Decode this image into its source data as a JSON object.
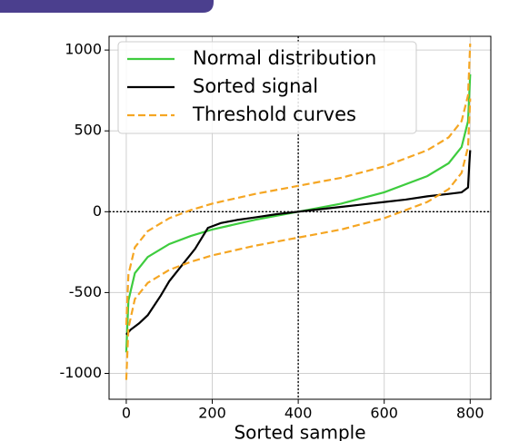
{
  "chart_data": {
    "type": "line",
    "xlabel": "Sorted sample",
    "xlim": [
      -40,
      848
    ],
    "ylim": [
      -1160,
      1085
    ],
    "xticks": [
      0,
      200,
      400,
      600,
      800
    ],
    "yticks": [
      -1000,
      -500,
      0,
      500,
      1000
    ],
    "grid": true,
    "legend": "upper left",
    "hline": 0,
    "vline": 400,
    "series": [
      {
        "name": "Normal distribution",
        "color": "#3ecc3e",
        "linestyle": "solid",
        "x": [
          0,
          5,
          20,
          50,
          100,
          150,
          200,
          300,
          400,
          500,
          600,
          700,
          750,
          780,
          795,
          800
        ],
        "values": [
          -870,
          -550,
          -380,
          -280,
          -200,
          -150,
          -110,
          -50,
          0,
          50,
          120,
          220,
          300,
          400,
          560,
          850
        ]
      },
      {
        "name": "Sorted signal",
        "color": "#000000",
        "linestyle": "solid",
        "x": [
          0,
          10,
          30,
          50,
          80,
          100,
          130,
          160,
          190,
          220,
          260,
          300,
          350,
          400,
          450,
          500,
          550,
          600,
          650,
          700,
          750,
          780,
          795,
          798,
          800
        ],
        "values": [
          -760,
          -730,
          -690,
          -640,
          -520,
          -430,
          -330,
          -230,
          -100,
          -70,
          -50,
          -35,
          -15,
          0,
          15,
          30,
          45,
          60,
          75,
          95,
          110,
          120,
          150,
          300,
          380
        ]
      },
      {
        "name": "Threshold curves",
        "color": "#f5a623",
        "linestyle": "dashed",
        "x": [
          0,
          5,
          20,
          50,
          100,
          150,
          200,
          300,
          400,
          500,
          600,
          700,
          750,
          780,
          795,
          800
        ],
        "values": [
          -700,
          -390,
          -220,
          -120,
          -40,
          10,
          50,
          110,
          160,
          210,
          280,
          380,
          460,
          560,
          720,
          1040
        ],
        "lower_values": [
          -1040,
          -720,
          -540,
          -440,
          -360,
          -310,
          -270,
          -210,
          -160,
          -110,
          -40,
          60,
          140,
          240,
          400,
          700
        ]
      }
    ]
  }
}
